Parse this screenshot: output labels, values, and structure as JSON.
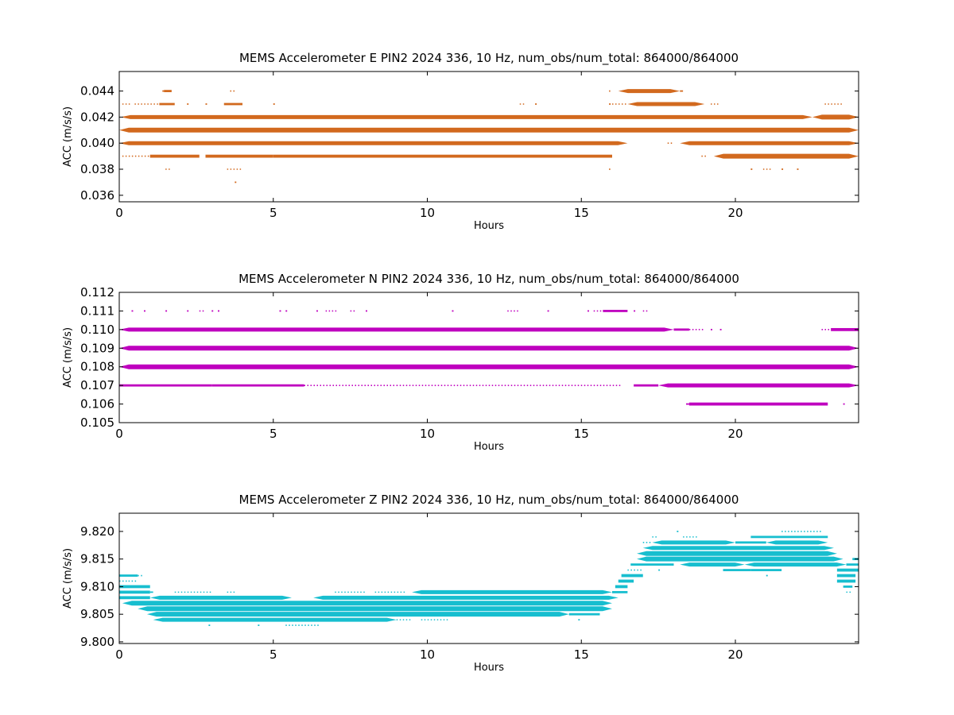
{
  "chart_data": [
    {
      "type": "scatter",
      "title": "MEMS Accelerometer E PIN2 2024 336, 10 Hz, num_obs/num_total: 864000/864000",
      "xlabel": "Hours",
      "ylabel": "ACC (m/s/s)",
      "xlim": [
        0,
        24
      ],
      "ylim": [
        0.0355,
        0.0455
      ],
      "xticks": [
        0,
        5,
        10,
        15,
        20
      ],
      "xtick_labels": [
        "0",
        "5",
        "10",
        "15",
        "20"
      ],
      "yticks": [
        0.036,
        0.038,
        0.04,
        0.042,
        0.044
      ],
      "ytick_labels": [
        "0.036",
        "0.038",
        "0.040",
        "0.042",
        "0.044"
      ],
      "color": "#d2691e",
      "grid": false,
      "series": [
        {
          "y": 0.044,
          "segments": [
            [
              1.4,
              1.45,
              1
            ],
            [
              1.45,
              1.7,
              2
            ],
            [
              3.6,
              3.75,
              1
            ],
            [
              15.9,
              15.92,
              1
            ],
            [
              16.2,
              18.2,
              4
            ],
            [
              18.2,
              18.3,
              1
            ]
          ]
        },
        {
          "y": 0.043,
          "segments": [
            [
              0.1,
              0.35,
              1
            ],
            [
              0.5,
              1.3,
              1
            ],
            [
              1.3,
              1.8,
              2
            ],
            [
              2.2,
              2.25,
              1
            ],
            [
              2.8,
              2.85,
              1
            ],
            [
              3.4,
              4.0,
              2
            ],
            [
              5.0,
              5.05,
              1
            ],
            [
              13.0,
              13.2,
              1
            ],
            [
              13.5,
              13.55,
              1
            ],
            [
              15.9,
              15.95,
              1
            ],
            [
              16.0,
              16.5,
              1
            ],
            [
              16.5,
              19.0,
              4
            ],
            [
              19.2,
              19.45,
              1
            ],
            [
              22.9,
              23.5,
              1
            ]
          ]
        },
        {
          "y": 0.042,
          "segments": [
            [
              0.05,
              22.5,
              4
            ],
            [
              22.5,
              24,
              5
            ]
          ]
        },
        {
          "y": 0.041,
          "segments": [
            [
              0,
              24,
              5
            ]
          ]
        },
        {
          "y": 0.04,
          "segments": [
            [
              0,
              16.5,
              4
            ],
            [
              17.8,
              18.0,
              1
            ],
            [
              18.2,
              24,
              4
            ]
          ]
        },
        {
          "y": 0.039,
          "segments": [
            [
              0.1,
              1.0,
              1
            ],
            [
              1.0,
              2.6,
              3
            ],
            [
              2.8,
              5.0,
              3
            ],
            [
              5.0,
              16.0,
              3
            ],
            [
              18.9,
              19.05,
              1
            ],
            [
              19.3,
              24,
              5
            ]
          ]
        },
        {
          "y": 0.038,
          "segments": [
            [
              1.5,
              1.7,
              1
            ],
            [
              3.5,
              4.0,
              1
            ],
            [
              15.9,
              15.92,
              1
            ],
            [
              20.5,
              20.55,
              1
            ],
            [
              20.9,
              21.2,
              1
            ],
            [
              21.5,
              21.55,
              1
            ],
            [
              22.0,
              22.05,
              1
            ]
          ]
        },
        {
          "y": 0.037,
          "segments": [
            [
              3.75,
              3.8,
              1
            ]
          ]
        }
      ]
    },
    {
      "type": "scatter",
      "title": "MEMS Accelerometer N PIN2 2024 336, 10 Hz, num_obs/num_total: 864000/864000",
      "xlabel": "Hours",
      "ylabel": "ACC (m/s/s)",
      "xlim": [
        0,
        24
      ],
      "ylim": [
        0.105,
        0.112
      ],
      "xticks": [
        0,
        5,
        10,
        15,
        20
      ],
      "xtick_labels": [
        "0",
        "5",
        "10",
        "15",
        "20"
      ],
      "yticks": [
        0.105,
        0.106,
        0.107,
        0.108,
        0.109,
        0.11,
        0.111,
        0.112
      ],
      "ytick_labels": [
        "0.105",
        "0.106",
        "0.107",
        "0.108",
        "0.109",
        "0.110",
        "0.111",
        "0.112"
      ],
      "color": "#bf00bf",
      "grid": false,
      "series": [
        {
          "y": 0.111,
          "segments": [
            [
              0.4,
              0.45,
              1
            ],
            [
              0.8,
              0.85,
              1
            ],
            [
              1.5,
              1.55,
              1
            ],
            [
              2.2,
              2.25,
              1
            ],
            [
              2.6,
              2.8,
              1
            ],
            [
              3.0,
              3.05,
              1
            ],
            [
              3.2,
              3.25,
              1
            ],
            [
              5.2,
              5.25,
              1
            ],
            [
              5.4,
              5.45,
              1
            ],
            [
              6.4,
              6.45,
              1
            ],
            [
              6.7,
              7.1,
              1
            ],
            [
              7.5,
              7.7,
              1
            ],
            [
              8.0,
              8.05,
              1
            ],
            [
              10.8,
              10.85,
              1
            ],
            [
              12.6,
              13.0,
              1
            ],
            [
              13.9,
              13.95,
              1
            ],
            [
              15.2,
              15.25,
              1
            ],
            [
              15.4,
              15.7,
              1
            ],
            [
              15.7,
              16.5,
              2
            ],
            [
              16.7,
              16.75,
              1
            ],
            [
              17.0,
              17.2,
              1
            ]
          ]
        },
        {
          "y": 0.11,
          "segments": [
            [
              0,
              18.0,
              4
            ],
            [
              18.0,
              18.5,
              2
            ],
            [
              18.5,
              19.0,
              1
            ],
            [
              19.2,
              19.25,
              1
            ],
            [
              19.5,
              19.55,
              1
            ],
            [
              22.8,
              23.1,
              1
            ],
            [
              23.1,
              24,
              3
            ]
          ]
        },
        {
          "y": 0.109,
          "segments": [
            [
              0,
              24,
              5
            ]
          ]
        },
        {
          "y": 0.108,
          "segments": [
            [
              0,
              24,
              5
            ]
          ]
        },
        {
          "y": 0.107,
          "segments": [
            [
              0,
              3.0,
              2
            ],
            [
              3.0,
              6.0,
              2
            ],
            [
              6.0,
              9.0,
              1
            ],
            [
              9.0,
              16.3,
              1
            ],
            [
              16.7,
              17.5,
              2
            ],
            [
              17.5,
              24,
              4
            ]
          ]
        },
        {
          "y": 0.106,
          "segments": [
            [
              18.4,
              18.5,
              1
            ],
            [
              18.5,
              23.0,
              3
            ],
            [
              23.5,
              23.55,
              1
            ]
          ]
        }
      ]
    },
    {
      "type": "scatter",
      "title": "MEMS Accelerometer Z PIN2 2024 336, 10 Hz, num_obs/num_total: 864000/864000",
      "xlabel": "Hours",
      "ylabel": "ACC (m/s/s)",
      "xlim": [
        0,
        24
      ],
      "ylim": [
        9.7997,
        9.8233
      ],
      "xticks": [
        0,
        5,
        10,
        15,
        20
      ],
      "xtick_labels": [
        "0",
        "5",
        "10",
        "15",
        "20"
      ],
      "yticks": [
        9.8,
        9.805,
        9.81,
        9.815,
        9.82
      ],
      "ytick_labels": [
        "9.800",
        "9.805",
        "9.810",
        "9.815",
        "9.820"
      ],
      "color": "#17becf",
      "grid": false,
      "series": [
        {
          "y": 9.82,
          "segments": [
            [
              18.1,
              18.15,
              1
            ],
            [
              21.5,
              22.8,
              1
            ]
          ]
        },
        {
          "y": 9.819,
          "segments": [
            [
              17.3,
              17.5,
              1
            ],
            [
              18.3,
              18.8,
              1
            ],
            [
              20.5,
              23.0,
              2
            ]
          ]
        },
        {
          "y": 9.818,
          "segments": [
            [
              17.0,
              17.3,
              1
            ],
            [
              17.3,
              20.0,
              4
            ],
            [
              20.0,
              21.0,
              2
            ],
            [
              21.0,
              23.0,
              4
            ]
          ]
        },
        {
          "y": 9.817,
          "segments": [
            [
              17.0,
              23.2,
              4
            ]
          ]
        },
        {
          "y": 9.816,
          "segments": [
            [
              16.8,
              23.3,
              5
            ]
          ]
        },
        {
          "y": 9.815,
          "segments": [
            [
              16.8,
              23.5,
              5
            ],
            [
              23.8,
              24,
              2
            ]
          ]
        },
        {
          "y": 9.814,
          "segments": [
            [
              16.6,
              18.0,
              2
            ],
            [
              18.2,
              20.3,
              4
            ],
            [
              20.3,
              23.6,
              4
            ],
            [
              23.6,
              24,
              2
            ]
          ]
        },
        {
          "y": 9.813,
          "segments": [
            [
              16.5,
              17.0,
              1
            ],
            [
              17.5,
              17.55,
              1
            ],
            [
              19.6,
              20.5,
              2
            ],
            [
              20.5,
              21.5,
              2
            ],
            [
              23.3,
              24,
              3
            ]
          ]
        },
        {
          "y": 9.812,
          "segments": [
            [
              0,
              0.6,
              2
            ],
            [
              0.6,
              0.75,
              1
            ],
            [
              16.3,
              17.0,
              3
            ],
            [
              21.0,
              21.05,
              1
            ],
            [
              23.3,
              23.9,
              3
            ]
          ]
        },
        {
          "y": 9.811,
          "segments": [
            [
              0,
              0.3,
              1
            ],
            [
              0.3,
              0.6,
              1
            ],
            [
              16.2,
              16.7,
              3
            ],
            [
              23.3,
              23.9,
              3
            ]
          ]
        },
        {
          "y": 9.81,
          "segments": [
            [
              0,
              1.0,
              3
            ],
            [
              16.1,
              16.5,
              3
            ],
            [
              23.5,
              23.8,
              2
            ]
          ]
        },
        {
          "y": 9.809,
          "segments": [
            [
              0,
              1.0,
              3
            ],
            [
              1.0,
              1.1,
              1
            ],
            [
              1.8,
              3.0,
              1
            ],
            [
              3.5,
              3.8,
              1
            ],
            [
              7.0,
              8.0,
              1
            ],
            [
              8.3,
              9.3,
              1
            ],
            [
              9.5,
              16.0,
              4
            ],
            [
              16.0,
              16.5,
              2
            ],
            [
              23.6,
              23.8,
              1
            ]
          ]
        },
        {
          "y": 9.808,
          "segments": [
            [
              0,
              1.0,
              3
            ],
            [
              1.0,
              5.6,
              4
            ],
            [
              6.3,
              16.2,
              4
            ]
          ]
        },
        {
          "y": 9.807,
          "segments": [
            [
              0.1,
              16.0,
              5
            ]
          ]
        },
        {
          "y": 9.806,
          "segments": [
            [
              0.6,
              16.0,
              5
            ]
          ]
        },
        {
          "y": 9.805,
          "segments": [
            [
              0.9,
              14.6,
              5
            ],
            [
              14.6,
              15.6,
              2
            ]
          ]
        },
        {
          "y": 9.804,
          "segments": [
            [
              1.1,
              9.0,
              4
            ],
            [
              9.0,
              9.5,
              1
            ],
            [
              9.8,
              10.7,
              1
            ],
            [
              14.9,
              14.95,
              1
            ]
          ]
        },
        {
          "y": 9.803,
          "segments": [
            [
              2.9,
              2.95,
              1
            ],
            [
              4.5,
              4.55,
              1
            ],
            [
              5.4,
              6.5,
              1
            ]
          ]
        }
      ]
    }
  ]
}
